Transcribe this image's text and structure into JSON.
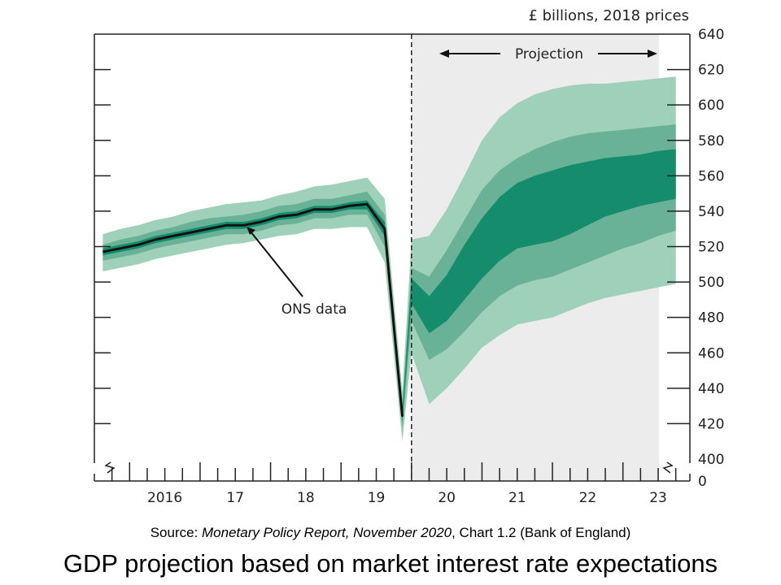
{
  "chart_data": {
    "type": "area",
    "title": "GDP projection based on market interest rate expectations",
    "unit_label": "£ billions, 2018 prices",
    "source": {
      "prefix": "Source: ",
      "report": "Monetary Policy Report, November 2020",
      "suffix": ", Chart 1.2 (Bank of England)"
    },
    "x_ticks": [
      "2016",
      "17",
      "18",
      "19",
      "20",
      "21",
      "22",
      "23"
    ],
    "y_ticks": [
      400,
      420,
      440,
      460,
      480,
      500,
      520,
      540,
      560,
      580,
      600,
      620,
      640
    ],
    "y_zero_label": "0",
    "ylim": [
      400,
      640
    ],
    "xlim": [
      2015.5,
      2023.95
    ],
    "projection_start": 2020.0,
    "annotations": {
      "projection": "Projection",
      "ons_data": "ONS data"
    },
    "colors": {
      "outer_band": "#9fd0b9",
      "middle_band": "#6ab297",
      "inner_band": "#158d6c",
      "line": "#111111",
      "projection_bg": "#ececec"
    },
    "series": [
      {
        "name": "ONS data",
        "x": [
          2015.62,
          2015.87,
          2016.12,
          2016.37,
          2016.62,
          2016.87,
          2017.12,
          2017.37,
          2017.62,
          2017.87,
          2018.12,
          2018.37,
          2018.62,
          2018.87,
          2019.12,
          2019.37,
          2019.62,
          2019.87
        ],
        "values": [
          517,
          519,
          521,
          524,
          526,
          528,
          530,
          532,
          532,
          534,
          537,
          538,
          541,
          541,
          543,
          544,
          530,
          424
        ]
      }
    ],
    "fan_bands": {
      "x": [
        2015.62,
        2015.87,
        2016.12,
        2016.37,
        2016.62,
        2016.87,
        2017.12,
        2017.37,
        2017.62,
        2017.87,
        2018.12,
        2018.37,
        2018.62,
        2018.87,
        2019.12,
        2019.37,
        2019.62,
        2019.87,
        2020.0,
        2020.25,
        2020.5,
        2020.75,
        2021.0,
        2021.25,
        2021.5,
        2021.75,
        2022.0,
        2022.25,
        2022.5,
        2022.75,
        2023.0,
        2023.25,
        2023.5,
        2023.75
      ],
      "outer_lo": [
        506,
        508,
        510,
        513,
        515,
        517,
        519,
        521,
        522,
        524,
        526,
        527,
        530,
        530,
        531,
        531,
        511,
        410,
        460,
        431,
        440,
        451,
        463,
        470,
        476,
        478,
        480,
        484,
        488,
        491,
        493,
        495,
        497,
        499
      ],
      "outer_hi": [
        527,
        530,
        532,
        535,
        537,
        540,
        542,
        544,
        545,
        546,
        549,
        551,
        554,
        555,
        557,
        559,
        547,
        438,
        524,
        526,
        541,
        560,
        580,
        593,
        601,
        606,
        609,
        611,
        612,
        612,
        613,
        614,
        615,
        616
      ],
      "mid_lo": [
        512,
        514,
        516,
        519,
        521,
        523,
        525,
        527,
        527,
        529,
        532,
        533,
        536,
        536,
        538,
        538,
        520,
        417,
        478,
        456,
        462,
        472,
        483,
        492,
        498,
        501,
        503,
        507,
        511,
        515,
        519,
        522,
        526,
        529
      ],
      "mid_hi": [
        521,
        524,
        526,
        529,
        531,
        534,
        536,
        537,
        538,
        540,
        543,
        544,
        547,
        547,
        549,
        551,
        538,
        431,
        508,
        503,
        518,
        535,
        552,
        563,
        570,
        575,
        579,
        582,
        584,
        585,
        586,
        587,
        588,
        589
      ],
      "inner_lo": [
        515,
        517,
        519,
        522,
        524,
        526,
        528,
        530,
        530,
        532,
        535,
        536,
        539,
        539,
        541,
        541,
        526,
        421,
        488,
        471,
        478,
        490,
        502,
        512,
        519,
        521,
        523,
        527,
        532,
        537,
        540,
        543,
        545,
        547
      ],
      "inner_hi": [
        519,
        521,
        523,
        526,
        528,
        530,
        532,
        534,
        534,
        536,
        539,
        540,
        543,
        543,
        545,
        546,
        534,
        427,
        502,
        492,
        504,
        521,
        536,
        548,
        556,
        560,
        563,
        566,
        568,
        570,
        571,
        572,
        574,
        575
      ]
    }
  }
}
